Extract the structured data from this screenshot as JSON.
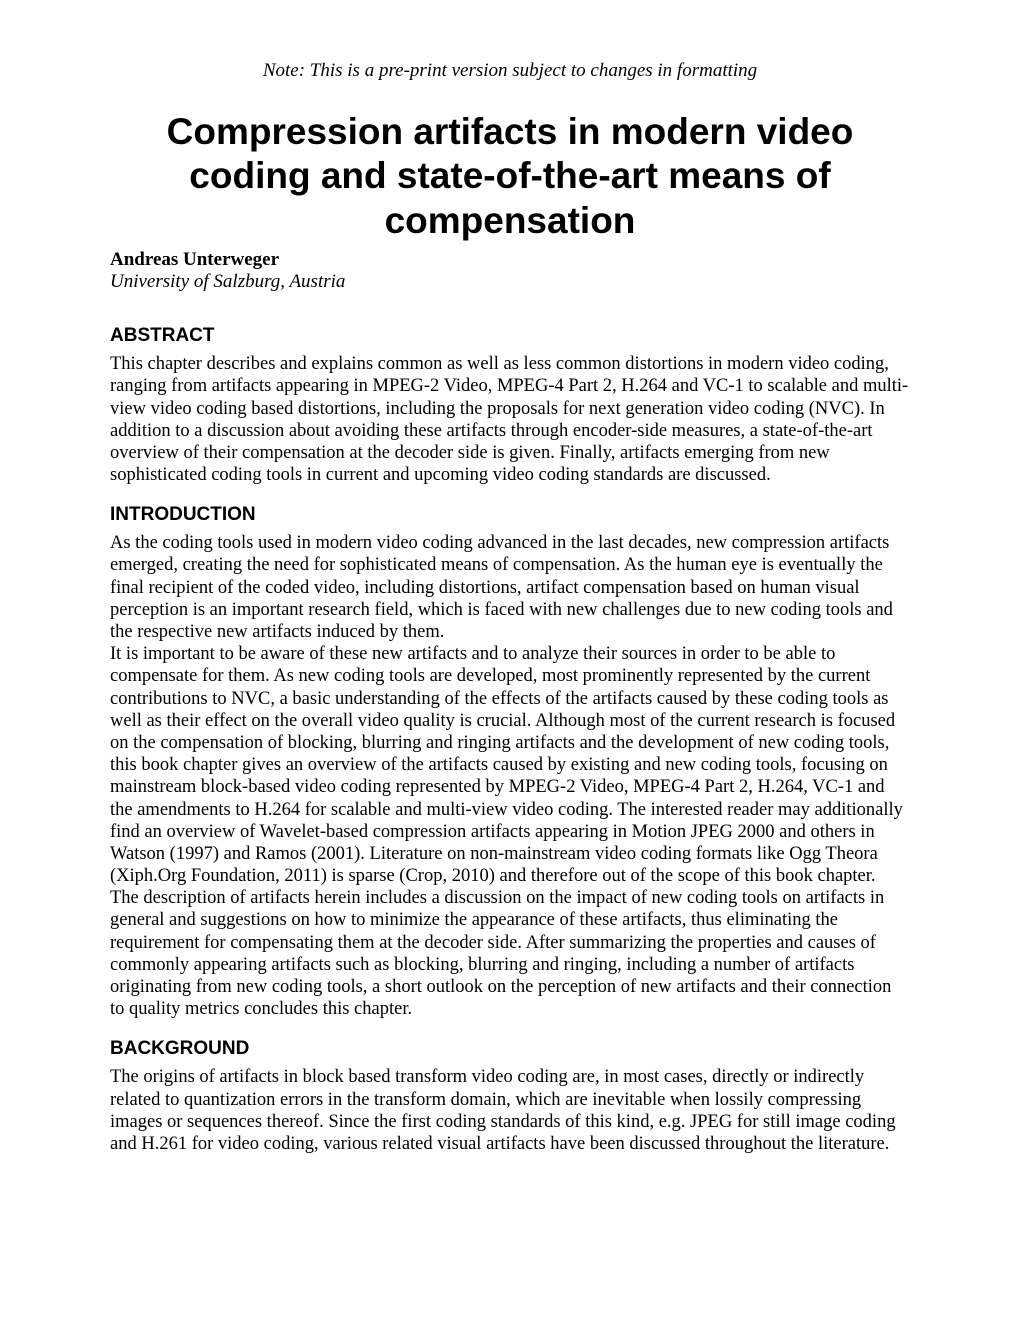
{
  "preprint_note": "Note: This is a pre-print version subject to changes in formatting",
  "title": "Compression artifacts in modern video coding and state-of-the-art means of compensation",
  "author": "Andreas Unterweger",
  "affiliation": "University of Salzburg, Austria",
  "sections": {
    "abstract": {
      "heading": "ABSTRACT",
      "body": "This chapter describes and explains common as well as less common distortions in modern video coding, ranging from artifacts appearing in MPEG-2 Video, MPEG-4 Part 2, H.264 and VC-1 to scalable and multi-view video coding based distortions, including the proposals for next generation video coding (NVC). In addition to a discussion about avoiding these artifacts through encoder-side measures, a state-of-the-art overview of their compensation at the decoder side is given. Finally, artifacts emerging from new sophisticated coding tools in current and upcoming video coding standards are discussed."
    },
    "introduction": {
      "heading": "INTRODUCTION",
      "body_p1": "As the coding tools used in modern video coding advanced in the last decades, new compression artifacts emerged, creating the need for sophisticated means of compensation. As the human eye is eventually the final recipient of the coded video, including distortions, artifact compensation based on human visual perception is an important research field, which is faced with new challenges due to new coding tools and the respective new artifacts induced by them.",
      "body_p2": "It is important to be aware of these new artifacts and to analyze their sources in order to be able to compensate for them. As new coding tools are developed, most prominently represented by the current contributions to NVC, a basic understanding of the effects of the artifacts caused by these coding tools as well as their effect on the overall video quality is crucial. Although most of the current research is focused on the compensation of blocking, blurring and ringing artifacts and the development of new coding tools, this book chapter gives an overview of the artifacts caused by existing and new coding tools, focusing on mainstream block-based video coding represented by MPEG-2 Video, MPEG-4 Part 2, H.264, VC-1 and the amendments to H.264 for scalable and multi-view video coding. The interested reader may additionally find an overview of Wavelet-based compression artifacts appearing in Motion JPEG 2000 and others in Watson (1997) and Ramos (2001). Literature on non-mainstream video coding formats like Ogg Theora (Xiph.Org Foundation, 2011) is sparse (Crop, 2010) and therefore out of the scope of this book chapter.",
      "body_p3": "The description of artifacts herein includes a discussion on the impact of new coding tools on artifacts in general and suggestions on how to minimize the appearance of these artifacts, thus eliminating the requirement for compensating them at the decoder side. After summarizing the properties and causes of commonly appearing artifacts such as blocking, blurring and ringing, including a number of artifacts originating from new coding tools, a short outlook on the perception of new artifacts and their connection to quality metrics concludes this chapter."
    },
    "background": {
      "heading": "BACKGROUND",
      "body": "The origins of artifacts in block based transform video coding are, in most cases, directly or indirectly related to quantization errors in the transform domain, which are inevitable when lossily compressing images or sequences thereof. Since the first coding standards of this kind, e.g. JPEG for still image coding and H.261 for video coding, various related visual artifacts have been discussed throughout the literature."
    }
  },
  "colors": {
    "background": "#ffffff",
    "text": "#000000"
  },
  "typography": {
    "body_font": "Times New Roman",
    "heading_font": "Arial",
    "title_fontsize": 37,
    "heading_fontsize": 19,
    "body_fontsize": 18.5,
    "note_fontsize": 19
  }
}
